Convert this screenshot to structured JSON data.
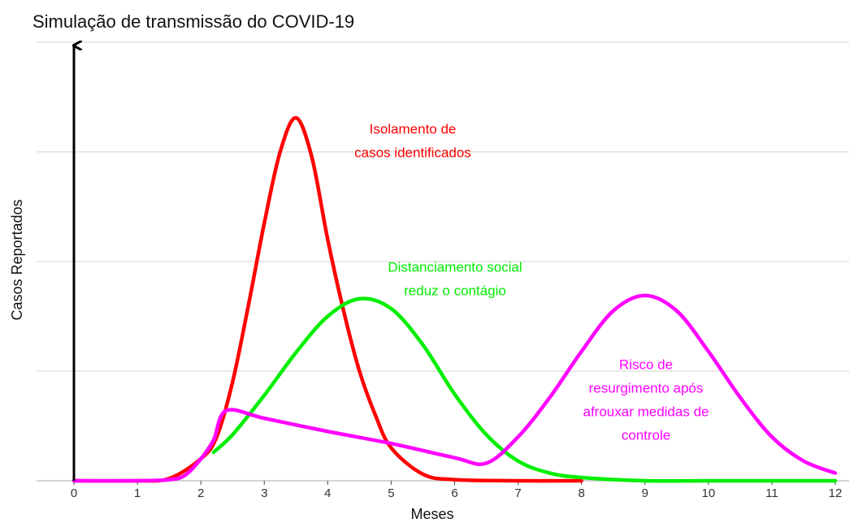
{
  "chart_data": {
    "type": "line",
    "title": "Simulação de transmissão do COVID-19",
    "x_label": "Meses",
    "y_label": "Casos Reportados",
    "xlim": [
      0,
      12
    ],
    "xticks": [
      0,
      1,
      2,
      3,
      4,
      5,
      6,
      7,
      8,
      9,
      10,
      11,
      12
    ],
    "ylim": [
      0,
      4
    ],
    "yticks": [
      0,
      1,
      2,
      3,
      4
    ],
    "grid": true,
    "series": [
      {
        "color": "#ff0000",
        "label": [
          "Isolamento de",
          "casos identificados"
        ],
        "x": [
          0,
          1,
          1.5,
          2,
          2.25,
          2.5,
          2.75,
          3,
          3.25,
          3.5,
          3.75,
          4,
          4.25,
          4.5,
          4.75,
          5,
          5.5,
          6,
          7,
          8
        ],
        "values": [
          0,
          0,
          0.02,
          0.2,
          0.4,
          0.9,
          1.6,
          2.35,
          3.0,
          3.31,
          2.95,
          2.2,
          1.55,
          1.0,
          0.6,
          0.3,
          0.06,
          0.01,
          0,
          0
        ]
      },
      {
        "color": "#00ee00",
        "label": [
          "Distanciamento social",
          "reduz o contágio"
        ],
        "x": [
          2.2,
          2.5,
          3,
          3.5,
          4,
          4.5,
          5,
          5.5,
          6,
          6.5,
          7,
          7.5,
          8,
          9,
          10,
          11,
          12
        ],
        "values": [
          0.26,
          0.42,
          0.78,
          1.17,
          1.5,
          1.66,
          1.57,
          1.24,
          0.79,
          0.42,
          0.18,
          0.07,
          0.03,
          0,
          0,
          0,
          0
        ]
      },
      {
        "color": "#ff00ff",
        "label": [
          "Risco de",
          "resurgimento após",
          "afrouxar medidas de",
          "controle"
        ],
        "x": [
          0,
          1,
          1.5,
          1.75,
          2,
          2.2,
          2.4,
          3,
          4,
          5,
          6,
          6.5,
          7,
          7.5,
          8,
          8.5,
          9,
          9.5,
          10,
          10.5,
          11,
          11.5,
          12
        ],
        "values": [
          0,
          0,
          0.01,
          0.05,
          0.2,
          0.37,
          0.64,
          0.57,
          0.45,
          0.34,
          0.21,
          0.16,
          0.4,
          0.76,
          1.18,
          1.55,
          1.69,
          1.55,
          1.18,
          0.76,
          0.4,
          0.18,
          0.07
        ]
      }
    ]
  }
}
